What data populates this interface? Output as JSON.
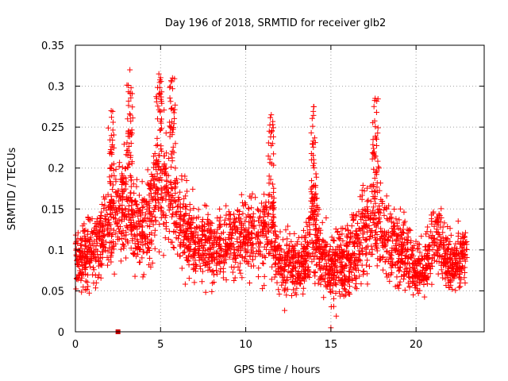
{
  "chart_data": {
    "type": "scatter",
    "title": "Day 196 of 2018, SRMTID for receiver glb2",
    "xlabel": "GPS time / hours",
    "ylabel": "SRMTID / TECUs",
    "xlim": [
      0,
      24
    ],
    "ylim": [
      0,
      0.35
    ],
    "xticks": [
      0,
      5,
      10,
      15,
      20
    ],
    "yticks": [
      0,
      0.05,
      0.1,
      0.15,
      0.2,
      0.25,
      0.3,
      0.35
    ],
    "grid": true,
    "series_color": "#ff0000",
    "marker_color": "#cc0000",
    "num_points": 3000,
    "generated": true,
    "profile": {
      "x": [
        0,
        0.5,
        1,
        1.5,
        2,
        2.5,
        3,
        3.5,
        4,
        4.5,
        5,
        5.5,
        6,
        7,
        8,
        9,
        10,
        10.5,
        11,
        11.5,
        12,
        12.5,
        13,
        13.5,
        14,
        14.5,
        15,
        15.5,
        16,
        16.5,
        17,
        17.5,
        18,
        18.5,
        19,
        19.5,
        20,
        20.5,
        21,
        21.5,
        22,
        22.5,
        23
      ],
      "mean": [
        0.085,
        0.09,
        0.1,
        0.115,
        0.13,
        0.145,
        0.155,
        0.13,
        0.13,
        0.15,
        0.18,
        0.17,
        0.14,
        0.11,
        0.1,
        0.105,
        0.115,
        0.12,
        0.125,
        0.12,
        0.085,
        0.08,
        0.08,
        0.085,
        0.13,
        0.09,
        0.075,
        0.08,
        0.09,
        0.1,
        0.12,
        0.14,
        0.12,
        0.115,
        0.1,
        0.09,
        0.075,
        0.075,
        0.11,
        0.105,
        0.08,
        0.085,
        0.095
      ],
      "spread": [
        0.035,
        0.035,
        0.04,
        0.04,
        0.05,
        0.055,
        0.06,
        0.05,
        0.05,
        0.055,
        0.065,
        0.06,
        0.05,
        0.04,
        0.04,
        0.04,
        0.045,
        0.05,
        0.05,
        0.05,
        0.035,
        0.035,
        0.035,
        0.04,
        0.055,
        0.04,
        0.035,
        0.04,
        0.04,
        0.045,
        0.05,
        0.055,
        0.05,
        0.045,
        0.04,
        0.035,
        0.03,
        0.03,
        0.04,
        0.04,
        0.035,
        0.035,
        0.035
      ]
    },
    "peaks": [
      {
        "x": 3.2,
        "y": 0.32
      },
      {
        "x": 4.9,
        "y": 0.315
      },
      {
        "x": 5.7,
        "y": 0.31
      },
      {
        "x": 14.0,
        "y": 0.275
      },
      {
        "x": 17.6,
        "y": 0.285
      },
      {
        "x": 11.5,
        "y": 0.265
      },
      {
        "x": 2.1,
        "y": 0.27
      }
    ],
    "lows": [
      {
        "x": 15.0,
        "y": 0.005
      },
      {
        "x": 2.5,
        "y": 0.0
      }
    ]
  }
}
